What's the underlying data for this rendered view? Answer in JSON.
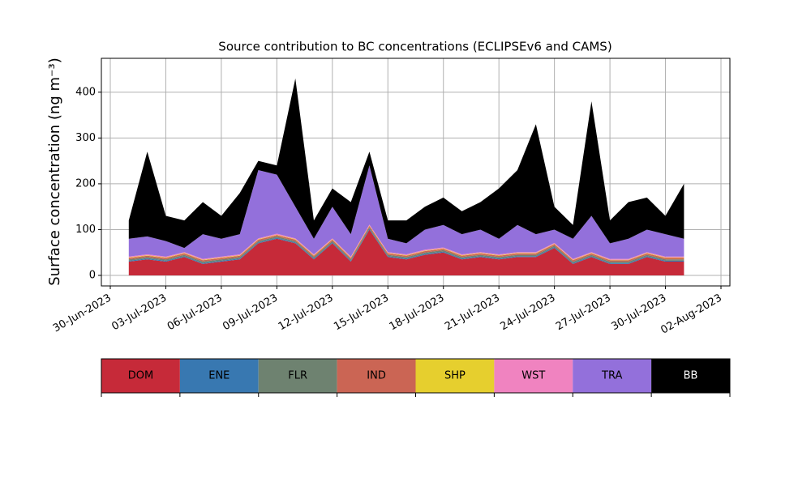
{
  "chart_data": {
    "type": "stacked_area",
    "title": "Source contribution to BC concentrations (ECLIPSEv6 and CAMS)",
    "y_label": "Surface concentration (ng m⁻³)",
    "x": [
      "2023-07-01",
      "2023-07-02",
      "2023-07-03",
      "2023-07-04",
      "2023-07-05",
      "2023-07-06",
      "2023-07-07",
      "2023-07-08",
      "2023-07-09",
      "2023-07-10",
      "2023-07-11",
      "2023-07-12",
      "2023-07-13",
      "2023-07-14",
      "2023-07-15",
      "2023-07-16",
      "2023-07-17",
      "2023-07-18",
      "2023-07-19",
      "2023-07-20",
      "2023-07-21",
      "2023-07-22",
      "2023-07-23",
      "2023-07-24",
      "2023-07-25",
      "2023-07-26",
      "2023-07-27",
      "2023-07-28",
      "2023-07-29",
      "2023-07-30",
      "2023-07-31"
    ],
    "series": [
      {
        "name": "DOM",
        "color": "#c62a39",
        "values": [
          30,
          35,
          30,
          40,
          25,
          30,
          35,
          70,
          80,
          70,
          35,
          70,
          30,
          100,
          40,
          35,
          45,
          50,
          35,
          40,
          35,
          40,
          40,
          60,
          25,
          40,
          25,
          25,
          40,
          30,
          30
        ]
      },
      {
        "name": "ENE",
        "color": "#3878b1",
        "values": [
          2,
          2,
          2,
          2,
          2,
          2,
          2,
          2,
          2,
          2,
          2,
          2,
          2,
          2,
          2,
          2,
          2,
          2,
          2,
          2,
          2,
          2,
          2,
          2,
          2,
          2,
          2,
          2,
          2,
          2,
          2
        ]
      },
      {
        "name": "FLR",
        "color": "#6e8270",
        "values": [
          3,
          3,
          3,
          3,
          3,
          3,
          3,
          3,
          3,
          3,
          3,
          3,
          3,
          3,
          3,
          3,
          3,
          3,
          3,
          3,
          3,
          3,
          3,
          3,
          3,
          3,
          3,
          3,
          3,
          3,
          3
        ]
      },
      {
        "name": "IND",
        "color": "#cb6554",
        "values": [
          3,
          3,
          3,
          3,
          3,
          3,
          3,
          3,
          3,
          3,
          3,
          3,
          3,
          3,
          3,
          3,
          3,
          3,
          3,
          3,
          3,
          3,
          3,
          3,
          3,
          3,
          3,
          3,
          3,
          3,
          3
        ]
      },
      {
        "name": "SHP",
        "color": "#e6cf2e",
        "values": [
          1,
          1,
          1,
          1,
          1,
          1,
          1,
          1,
          1,
          1,
          1,
          1,
          1,
          1,
          1,
          1,
          1,
          1,
          1,
          1,
          1,
          1,
          1,
          1,
          1,
          1,
          1,
          1,
          1,
          1,
          1
        ]
      },
      {
        "name": "WST",
        "color": "#f083c0",
        "values": [
          2,
          2,
          2,
          2,
          2,
          2,
          2,
          2,
          2,
          2,
          2,
          2,
          2,
          2,
          2,
          2,
          2,
          2,
          2,
          2,
          2,
          2,
          2,
          2,
          2,
          2,
          2,
          2,
          2,
          2,
          2
        ]
      },
      {
        "name": "TRA",
        "color": "#9370db",
        "values": [
          39,
          39,
          34,
          9,
          54,
          39,
          44,
          149,
          129,
          69,
          34,
          69,
          49,
          129,
          29,
          24,
          44,
          49,
          44,
          49,
          34,
          59,
          39,
          29,
          44,
          79,
          34,
          44,
          49,
          49,
          39
        ]
      },
      {
        "name": "BB",
        "color": "#000000",
        "values": [
          40,
          185,
          55,
          60,
          70,
          50,
          90,
          20,
          20,
          280,
          40,
          40,
          70,
          30,
          40,
          50,
          50,
          60,
          50,
          60,
          110,
          120,
          240,
          50,
          30,
          250,
          50,
          80,
          70,
          40,
          120
        ]
      }
    ],
    "xlim": [
      "2023-06-30",
      "2023-08-02"
    ],
    "xticks": [
      {
        "value": "2023-06-30",
        "label": "30-Jun-2023"
      },
      {
        "value": "2023-07-03",
        "label": "03-Jul-2023"
      },
      {
        "value": "2023-07-06",
        "label": "06-Jul-2023"
      },
      {
        "value": "2023-07-09",
        "label": "09-Jul-2023"
      },
      {
        "value": "2023-07-12",
        "label": "12-Jul-2023"
      },
      {
        "value": "2023-07-15",
        "label": "15-Jul-2023"
      },
      {
        "value": "2023-07-18",
        "label": "18-Jul-2023"
      },
      {
        "value": "2023-07-21",
        "label": "21-Jul-2023"
      },
      {
        "value": "2023-07-24",
        "label": "24-Jul-2023"
      },
      {
        "value": "2023-07-27",
        "label": "27-Jul-2023"
      },
      {
        "value": "2023-07-30",
        "label": "30-Jul-2023"
      },
      {
        "value": "2023-08-02",
        "label": "02-Aug-2023"
      }
    ],
    "ylim": [
      -23,
      474
    ],
    "yticks": [
      0,
      100,
      200,
      300,
      400
    ],
    "grid": true
  }
}
